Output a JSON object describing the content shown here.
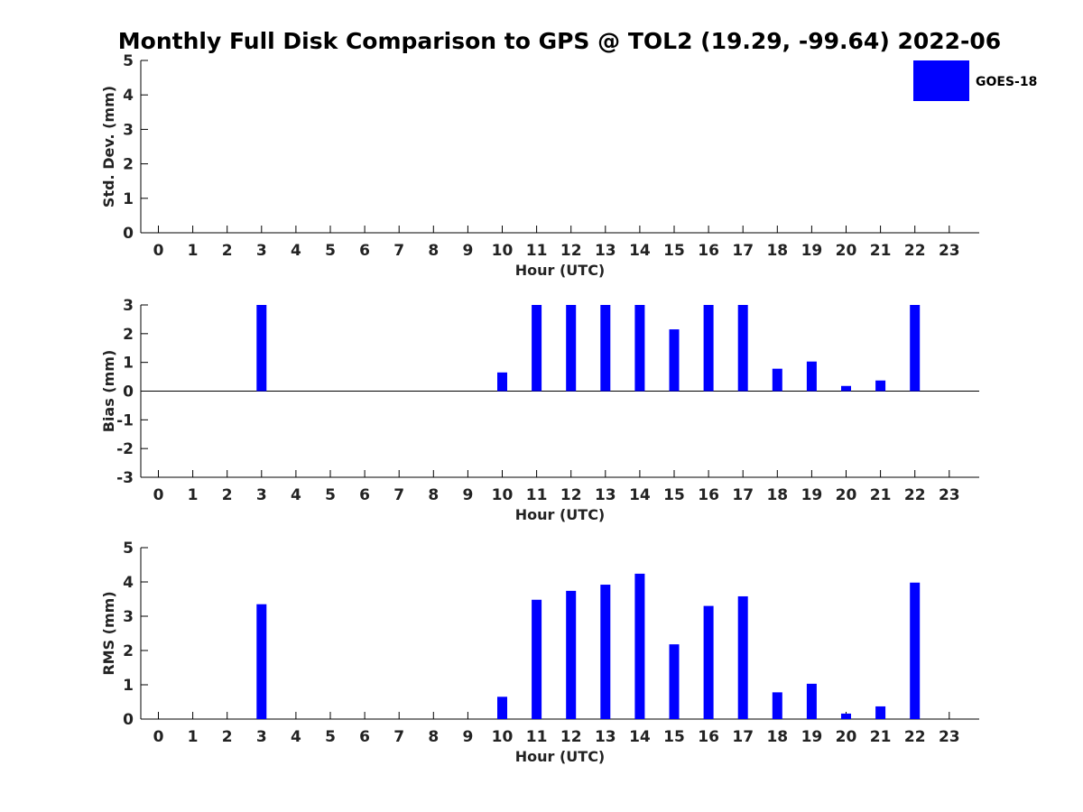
{
  "chart_data": {
    "title": "Monthly Full Disk Comparison to GPS @ TOL2 (19.29, -99.64) 2022-06",
    "legend": {
      "label": "GOES-18",
      "color": "#0000ff",
      "placement": "top-right"
    },
    "bar_color": "#0000ff",
    "panels": [
      {
        "type": "bar",
        "ylabel": "Std. Dev. (mm)",
        "xlabel": "Hour (UTC)",
        "ylim": [
          0,
          5
        ],
        "yticks": [
          0,
          1,
          2,
          3,
          4,
          5
        ],
        "x": [
          0,
          1,
          2,
          3,
          4,
          5,
          6,
          7,
          8,
          9,
          10,
          11,
          12,
          13,
          14,
          15,
          16,
          17,
          18,
          19,
          20,
          21,
          22,
          23
        ],
        "values": [
          null,
          null,
          null,
          null,
          null,
          null,
          null,
          null,
          null,
          null,
          null,
          null,
          null,
          null,
          null,
          null,
          null,
          null,
          null,
          null,
          null,
          null,
          null,
          null
        ],
        "zero_line": false
      },
      {
        "type": "bar",
        "ylabel": "Bias (mm)",
        "xlabel": "Hour (UTC)",
        "ylim": [
          -3,
          3
        ],
        "yticks": [
          -3,
          -2,
          -1,
          0,
          1,
          2,
          3
        ],
        "x": [
          0,
          1,
          2,
          3,
          4,
          5,
          6,
          7,
          8,
          9,
          10,
          11,
          12,
          13,
          14,
          15,
          16,
          17,
          18,
          19,
          20,
          21,
          22,
          23
        ],
        "values": [
          null,
          null,
          null,
          3.0,
          null,
          null,
          null,
          null,
          null,
          null,
          0.65,
          3.0,
          3.0,
          3.0,
          3.0,
          2.15,
          3.0,
          3.0,
          0.78,
          1.03,
          0.18,
          0.37,
          3.0,
          null
        ],
        "zero_line": true
      },
      {
        "type": "bar",
        "ylabel": "RMS (mm)",
        "xlabel": "Hour (UTC)",
        "ylim": [
          0,
          5
        ],
        "yticks": [
          0,
          1,
          2,
          3,
          4,
          5
        ],
        "x": [
          0,
          1,
          2,
          3,
          4,
          5,
          6,
          7,
          8,
          9,
          10,
          11,
          12,
          13,
          14,
          15,
          16,
          17,
          18,
          19,
          20,
          21,
          22,
          23
        ],
        "values": [
          null,
          null,
          null,
          3.35,
          null,
          null,
          null,
          null,
          null,
          null,
          0.65,
          3.48,
          3.74,
          3.92,
          4.24,
          2.18,
          3.3,
          3.58,
          0.78,
          1.03,
          0.16,
          0.37,
          3.98,
          null
        ],
        "zero_line": false
      }
    ]
  }
}
